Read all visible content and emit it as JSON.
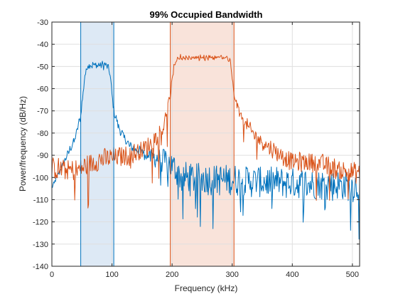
{
  "chart_data": {
    "type": "line",
    "title": "99% Occupied Bandwidth",
    "xlabel": "Frequency (kHz)",
    "ylabel": "Power/frequency (dB/Hz)",
    "xlim": [
      0,
      512
    ],
    "ylim": [
      -140,
      -30
    ],
    "xticks": [
      0,
      100,
      200,
      300,
      400,
      500
    ],
    "yticks": [
      -30,
      -40,
      -50,
      -60,
      -70,
      -80,
      -90,
      -100,
      -110,
      -120,
      -130,
      -140
    ],
    "grid": true,
    "colors": {
      "blue": "#0072BD",
      "orange": "#D95319"
    },
    "bands": [
      {
        "color": "#0072BD",
        "fill": "#dde9f5",
        "x0": 48,
        "x1": 103
      },
      {
        "color": "#D95319",
        "fill": "#f9e3da",
        "x0": 197,
        "x1": 303
      }
    ],
    "series": [
      {
        "color": "#0072BD",
        "shape": [
          [
            0,
            -105
          ],
          [
            20,
            -93
          ],
          [
            38,
            -83
          ],
          [
            48,
            -72
          ],
          [
            55,
            -54
          ],
          [
            60,
            -49.2
          ],
          [
            75,
            -49.5
          ],
          [
            90,
            -49.3
          ],
          [
            96,
            -52
          ],
          [
            103,
            -70
          ],
          [
            112,
            -78
          ],
          [
            120,
            -82
          ],
          [
            130,
            -86
          ],
          [
            145,
            -88
          ],
          [
            165,
            -91
          ],
          [
            185,
            -92
          ],
          [
            205,
            -96
          ],
          [
            215,
            -100
          ],
          [
            512,
            -104
          ]
        ],
        "ripple": 0.5,
        "noise": [
          [
            0,
            1.5
          ],
          [
            150,
            2
          ],
          [
            205,
            7
          ],
          [
            512,
            7
          ]
        ],
        "spikes": 0.06
      },
      {
        "color": "#D95319",
        "shape": [
          [
            0,
            -96
          ],
          [
            40,
            -97
          ],
          [
            80,
            -92
          ],
          [
            130,
            -90
          ],
          [
            160,
            -86
          ],
          [
            185,
            -78
          ],
          [
            197,
            -63
          ],
          [
            203,
            -50
          ],
          [
            212,
            -46
          ],
          [
            250,
            -46
          ],
          [
            290,
            -46
          ],
          [
            297,
            -48
          ],
          [
            303,
            -63
          ],
          [
            315,
            -73
          ],
          [
            340,
            -82
          ],
          [
            370,
            -88
          ],
          [
            400,
            -93
          ],
          [
            440,
            -93
          ],
          [
            480,
            -97
          ],
          [
            512,
            -98
          ]
        ],
        "ripple": 0.6,
        "noise": [
          [
            0,
            5
          ],
          [
            180,
            4
          ],
          [
            200,
            1
          ],
          [
            300,
            1
          ],
          [
            320,
            2.5
          ],
          [
            380,
            4
          ],
          [
            512,
            4.5
          ]
        ],
        "spikes": 0.04
      }
    ]
  }
}
